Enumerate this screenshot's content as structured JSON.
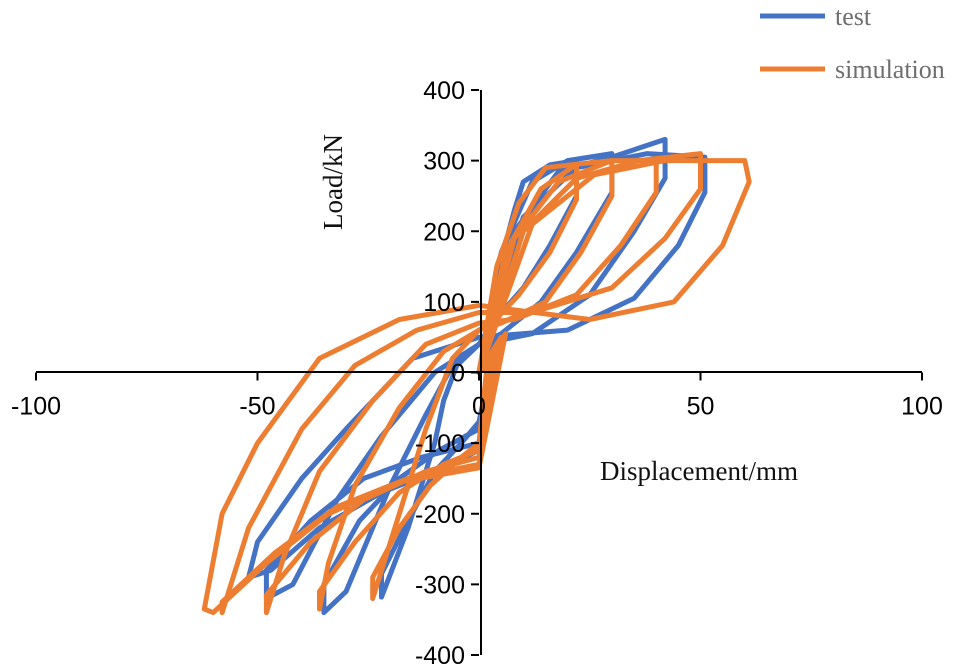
{
  "chart_data": {
    "type": "line",
    "xlabel": "Displacement/mm",
    "ylabel": "Load/kN",
    "xlim": [
      -100,
      100
    ],
    "ylim": [
      -400,
      400
    ],
    "x_ticks": [
      "-100",
      "-50",
      "0",
      "50",
      "100"
    ],
    "y_ticks": [
      "400",
      "300",
      "200",
      "100",
      "0",
      "-100",
      "-200",
      "-300",
      "-400"
    ],
    "grid": false,
    "legend_position": "top-right",
    "series": [
      {
        "name": "test",
        "color": "#4472C4",
        "loops": [
          [
            [
              0,
              0
            ],
            [
              5,
              160
            ],
            [
              8,
              230
            ],
            [
              10,
              270
            ],
            [
              16,
              294
            ],
            [
              22,
              300
            ],
            [
              22,
              250
            ],
            [
              16,
              180
            ],
            [
              10,
              120
            ],
            [
              3,
              70
            ],
            [
              0,
              40
            ],
            [
              -5,
              10
            ],
            [
              -8,
              -40
            ],
            [
              -10,
              -100
            ],
            [
              -16,
              -220
            ],
            [
              -22,
              -318
            ],
            [
              -22,
              -285
            ],
            [
              -16,
              -210
            ],
            [
              -10,
              -140
            ],
            [
              -4,
              -100
            ],
            [
              0,
              -70
            ],
            [
              3,
              20
            ],
            [
              0,
              0
            ]
          ],
          [
            [
              0,
              0
            ],
            [
              5,
              170
            ],
            [
              12,
              270
            ],
            [
              20,
              300
            ],
            [
              30,
              310
            ],
            [
              30,
              255
            ],
            [
              22,
              170
            ],
            [
              14,
              100
            ],
            [
              5,
              55
            ],
            [
              0,
              40
            ],
            [
              -6,
              10
            ],
            [
              -12,
              -60
            ],
            [
              -20,
              -160
            ],
            [
              -30,
              -310
            ],
            [
              -35,
              -340
            ],
            [
              -35,
              -300
            ],
            [
              -27,
              -210
            ],
            [
              -18,
              -150
            ],
            [
              -9,
              -110
            ],
            [
              0,
              -80
            ],
            [
              3,
              30
            ],
            [
              0,
              0
            ]
          ],
          [
            [
              0,
              0
            ],
            [
              8,
              200
            ],
            [
              18,
              285
            ],
            [
              30,
              305
            ],
            [
              42,
              330
            ],
            [
              42,
              275
            ],
            [
              35,
              200
            ],
            [
              25,
              110
            ],
            [
              12,
              55
            ],
            [
              0,
              40
            ],
            [
              -10,
              0
            ],
            [
              -22,
              -90
            ],
            [
              -32,
              -180
            ],
            [
              -42,
              -300
            ],
            [
              -48,
              -320
            ],
            [
              -48,
              -280
            ],
            [
              -38,
              -210
            ],
            [
              -26,
              -150
            ],
            [
              -13,
              -120
            ],
            [
              0,
              -100
            ],
            [
              3,
              40
            ],
            [
              0,
              0
            ]
          ],
          [
            [
              0,
              0
            ],
            [
              10,
              220
            ],
            [
              22,
              290
            ],
            [
              38,
              310
            ],
            [
              51,
              305
            ],
            [
              51,
              255
            ],
            [
              45,
              180
            ],
            [
              35,
              105
            ],
            [
              20,
              60
            ],
            [
              0,
              50
            ],
            [
              -15,
              20
            ],
            [
              -30,
              -80
            ],
            [
              -40,
              -150
            ],
            [
              -50,
              -240
            ],
            [
              -52,
              -290
            ],
            [
              -47,
              -280
            ],
            [
              -36,
              -220
            ],
            [
              -22,
              -170
            ],
            [
              -10,
              -140
            ],
            [
              0,
              -110
            ],
            [
              4,
              50
            ],
            [
              0,
              0
            ]
          ]
        ]
      },
      {
        "name": "simulation",
        "color": "#ED7D31",
        "loops": [
          [
            [
              0,
              0
            ],
            [
              4,
              150
            ],
            [
              9,
              240
            ],
            [
              15,
              290
            ],
            [
              22,
              295
            ],
            [
              22,
              245
            ],
            [
              16,
              170
            ],
            [
              9,
              110
            ],
            [
              3,
              70
            ],
            [
              0,
              60
            ],
            [
              -6,
              20
            ],
            [
              -12,
              -80
            ],
            [
              -18,
              -200
            ],
            [
              -24,
              -320
            ],
            [
              -24,
              -290
            ],
            [
              -18,
              -220
            ],
            [
              -11,
              -160
            ],
            [
              -4,
              -120
            ],
            [
              0,
              -100
            ],
            [
              2,
              20
            ],
            [
              0,
              0
            ]
          ],
          [
            [
              0,
              0
            ],
            [
              6,
              170
            ],
            [
              14,
              260
            ],
            [
              22,
              295
            ],
            [
              30,
              300
            ],
            [
              30,
              250
            ],
            [
              23,
              170
            ],
            [
              15,
              100
            ],
            [
              5,
              70
            ],
            [
              0,
              60
            ],
            [
              -8,
              30
            ],
            [
              -18,
              -50
            ],
            [
              -28,
              -160
            ],
            [
              -34,
              -270
            ],
            [
              -36,
              -335
            ],
            [
              -36,
              -310
            ],
            [
              -28,
              -240
            ],
            [
              -18,
              -170
            ],
            [
              -8,
              -130
            ],
            [
              0,
              -110
            ],
            [
              3,
              30
            ],
            [
              0,
              0
            ]
          ],
          [
            [
              0,
              0
            ],
            [
              8,
              190
            ],
            [
              18,
              270
            ],
            [
              30,
              300
            ],
            [
              40,
              300
            ],
            [
              40,
              255
            ],
            [
              32,
              180
            ],
            [
              22,
              110
            ],
            [
              8,
              75
            ],
            [
              0,
              70
            ],
            [
              -12,
              40
            ],
            [
              -24,
              -40
            ],
            [
              -36,
              -140
            ],
            [
              -44,
              -260
            ],
            [
              -48,
              -340
            ],
            [
              -48,
              -315
            ],
            [
              -38,
              -240
            ],
            [
              -26,
              -180
            ],
            [
              -12,
              -140
            ],
            [
              0,
              -120
            ],
            [
              4,
              40
            ],
            [
              0,
              0
            ]
          ],
          [
            [
              0,
              0
            ],
            [
              10,
              200
            ],
            [
              22,
              275
            ],
            [
              36,
              300
            ],
            [
              50,
              310
            ],
            [
              50,
              260
            ],
            [
              42,
              190
            ],
            [
              30,
              120
            ],
            [
              12,
              85
            ],
            [
              0,
              85
            ],
            [
              -14,
              60
            ],
            [
              -28,
              10
            ],
            [
              -40,
              -80
            ],
            [
              -52,
              -220
            ],
            [
              -58,
              -340
            ],
            [
              -58,
              -325
            ],
            [
              -46,
              -255
            ],
            [
              -32,
              -190
            ],
            [
              -16,
              -150
            ],
            [
              0,
              -130
            ],
            [
              5,
              50
            ],
            [
              0,
              0
            ]
          ],
          [
            [
              0,
              0
            ],
            [
              12,
              210
            ],
            [
              26,
              280
            ],
            [
              42,
              300
            ],
            [
              60,
              300
            ],
            [
              61,
              270
            ],
            [
              55,
              180
            ],
            [
              44,
              100
            ],
            [
              25,
              75
            ],
            [
              0,
              95
            ],
            [
              -18,
              75
            ],
            [
              -36,
              20
            ],
            [
              -50,
              -100
            ],
            [
              -58,
              -200
            ],
            [
              -62,
              -335
            ],
            [
              -60,
              -340
            ],
            [
              -48,
              -270
            ],
            [
              -34,
              -200
            ],
            [
              -18,
              -155
            ],
            [
              0,
              -135
            ],
            [
              6,
              55
            ],
            [
              0,
              0
            ]
          ]
        ]
      }
    ]
  }
}
